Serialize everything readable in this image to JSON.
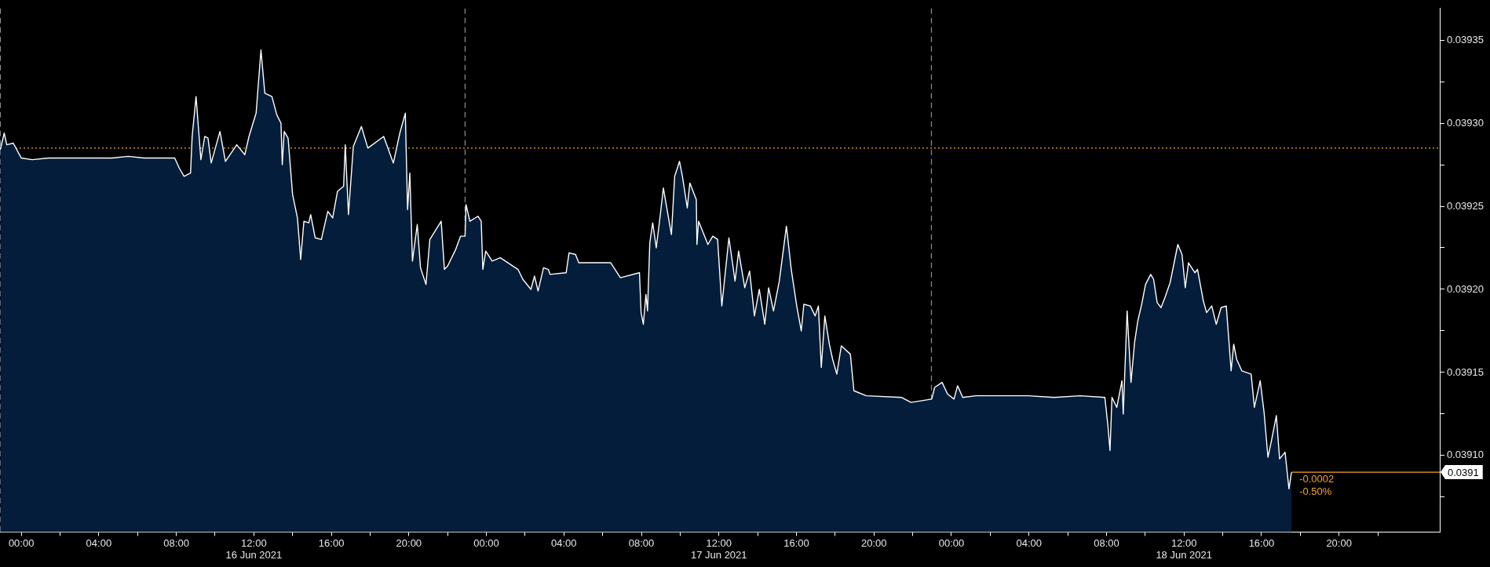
{
  "chart_data": {
    "type": "area",
    "xlim": [
      "2021-06-15T22:54",
      "2021-06-19T01:12"
    ],
    "ylim": [
      0.039054,
      0.039369
    ],
    "xticks": [
      {
        "value": "2021-06-16T00:00",
        "label": "00:00"
      },
      {
        "value": "2021-06-16T02:00",
        "label": null
      },
      {
        "value": "2021-06-16T04:00",
        "label": "04:00"
      },
      {
        "value": "2021-06-16T06:00",
        "label": null
      },
      {
        "value": "2021-06-16T08:00",
        "label": "08:00"
      },
      {
        "value": "2021-06-16T10:00",
        "label": null
      },
      {
        "value": "2021-06-16T12:00",
        "label": "12:00"
      },
      {
        "value": "2021-06-16T14:00",
        "label": null
      },
      {
        "value": "2021-06-16T16:00",
        "label": "16:00"
      },
      {
        "value": "2021-06-16T18:00",
        "label": null
      },
      {
        "value": "2021-06-16T20:00",
        "label": "20:00"
      },
      {
        "value": "2021-06-16T22:00",
        "label": null
      },
      {
        "value": "2021-06-17T00:00",
        "label": "00:00"
      },
      {
        "value": "2021-06-17T02:00",
        "label": null
      },
      {
        "value": "2021-06-17T04:00",
        "label": "04:00"
      },
      {
        "value": "2021-06-17T06:00",
        "label": null
      },
      {
        "value": "2021-06-17T08:00",
        "label": "08:00"
      },
      {
        "value": "2021-06-17T10:00",
        "label": null
      },
      {
        "value": "2021-06-17T12:00",
        "label": "12:00"
      },
      {
        "value": "2021-06-17T14:00",
        "label": null
      },
      {
        "value": "2021-06-17T16:00",
        "label": "16:00"
      },
      {
        "value": "2021-06-17T18:00",
        "label": null
      },
      {
        "value": "2021-06-17T20:00",
        "label": "20:00"
      },
      {
        "value": "2021-06-17T22:00",
        "label": null
      },
      {
        "value": "2021-06-18T00:00",
        "label": "00:00"
      },
      {
        "value": "2021-06-18T02:00",
        "label": null
      },
      {
        "value": "2021-06-18T04:00",
        "label": "04:00"
      },
      {
        "value": "2021-06-18T06:00",
        "label": null
      },
      {
        "value": "2021-06-18T08:00",
        "label": "08:00"
      },
      {
        "value": "2021-06-18T10:00",
        "label": null
      },
      {
        "value": "2021-06-18T12:00",
        "label": "12:00"
      },
      {
        "value": "2021-06-18T14:00",
        "label": null
      },
      {
        "value": "2021-06-18T16:00",
        "label": "16:00"
      },
      {
        "value": "2021-06-18T18:00",
        "label": null
      },
      {
        "value": "2021-06-18T20:00",
        "label": "20:00"
      },
      {
        "value": "2021-06-18T22:00",
        "label": null
      }
    ],
    "yticks": [
      {
        "value": 0.039075,
        "label": null
      },
      {
        "value": 0.0391,
        "label": "0.03910"
      },
      {
        "value": 0.039125,
        "label": null
      },
      {
        "value": 0.03915,
        "label": "0.03915"
      },
      {
        "value": 0.039175,
        "label": null
      },
      {
        "value": 0.0392,
        "label": "0.03920"
      },
      {
        "value": 0.039225,
        "label": null
      },
      {
        "value": 0.03925,
        "label": "0.03925"
      },
      {
        "value": 0.039275,
        "label": null
      },
      {
        "value": 0.0393,
        "label": "0.03930"
      },
      {
        "value": 0.039325,
        "label": null
      },
      {
        "value": 0.03935,
        "label": "0.03935"
      }
    ],
    "grid": false,
    "legend": false,
    "marker": "none",
    "series": [
      {
        "color": "#031d3a",
        "x": [
          "2021-06-15T22:55",
          "2021-06-15T23:07",
          "2021-06-15T23:15",
          "2021-06-15T23:35",
          "2021-06-16T00:00",
          "2021-06-16T00:34",
          "2021-06-16T01:24",
          "2021-06-16T03:03",
          "2021-06-16T04:41",
          "2021-06-16T05:31",
          "2021-06-16T06:20",
          "2021-06-16T07:55",
          "2021-06-16T08:09",
          "2021-06-16T08:24",
          "2021-06-16T08:44",
          "2021-06-16T08:49",
          "2021-06-16T09:01",
          "2021-06-16T09:16",
          "2021-06-16T09:28",
          "2021-06-16T09:38",
          "2021-06-16T09:48",
          "2021-06-16T10:15",
          "2021-06-16T10:32",
          "2021-06-16T11:07",
          "2021-06-16T11:32",
          "2021-06-16T11:45",
          "2021-06-16T12:07",
          "2021-06-16T12:22",
          "2021-06-16T12:34",
          "2021-06-16T12:56",
          "2021-06-16T13:11",
          "2021-06-16T13:24",
          "2021-06-16T13:28",
          "2021-06-16T13:34",
          "2021-06-16T13:46",
          "2021-06-16T14:00",
          "2021-06-16T14:15",
          "2021-06-16T14:25",
          "2021-06-16T14:35",
          "2021-06-16T14:50",
          "2021-06-16T14:56",
          "2021-06-16T15:10",
          "2021-06-16T15:29",
          "2021-06-16T15:49",
          "2021-06-16T16:04",
          "2021-06-16T16:19",
          "2021-06-16T16:38",
          "2021-06-16T16:43",
          "2021-06-16T16:53",
          "2021-06-16T17:08",
          "2021-06-16T17:33",
          "2021-06-16T17:53",
          "2021-06-16T18:42",
          "2021-06-16T19:12",
          "2021-06-16T19:32",
          "2021-06-16T19:49",
          "2021-06-16T19:56",
          "2021-06-16T20:03",
          "2021-06-16T20:11",
          "2021-06-16T20:26",
          "2021-06-16T20:36",
          "2021-06-16T20:53",
          "2021-06-16T21:05",
          "2021-06-16T21:40",
          "2021-06-16T21:50",
          "2021-06-16T22:00",
          "2021-06-16T22:25",
          "2021-06-16T22:40",
          "2021-06-16T22:54",
          "2021-06-16T22:57",
          "2021-06-16T23:09",
          "2021-06-16T23:34",
          "2021-06-16T23:44",
          "2021-06-16T23:49",
          "2021-06-16T23:58",
          "2021-06-17T00:18",
          "2021-06-17T00:43",
          "2021-06-17T01:38",
          "2021-06-17T01:53",
          "2021-06-17T02:18",
          "2021-06-17T02:29",
          "2021-06-17T02:40",
          "2021-06-17T02:57",
          "2021-06-17T03:12",
          "2021-06-17T03:17",
          "2021-06-17T04:07",
          "2021-06-17T04:16",
          "2021-06-17T04:36",
          "2021-06-17T04:46",
          "2021-06-17T05:46",
          "2021-06-17T06:25",
          "2021-06-17T06:55",
          "2021-06-17T07:54",
          "2021-06-17T07:59",
          "2021-06-17T08:06",
          "2021-06-17T08:14",
          "2021-06-17T08:19",
          "2021-06-17T08:26",
          "2021-06-17T08:35",
          "2021-06-17T08:46",
          "2021-06-17T08:58",
          "2021-06-17T09:08",
          "2021-06-17T09:23",
          "2021-06-17T09:33",
          "2021-06-17T09:43",
          "2021-06-17T09:58",
          "2021-06-17T10:07",
          "2021-06-17T10:22",
          "2021-06-17T10:30",
          "2021-06-17T10:50",
          "2021-06-17T10:52",
          "2021-06-17T10:57",
          "2021-06-17T11:26",
          "2021-06-17T11:41",
          "2021-06-17T11:56",
          "2021-06-17T12:09",
          "2021-06-17T12:31",
          "2021-06-17T12:50",
          "2021-06-17T13:01",
          "2021-06-17T13:20",
          "2021-06-17T13:35",
          "2021-06-17T13:50",
          "2021-06-17T14:05",
          "2021-06-17T14:22",
          "2021-06-17T14:34",
          "2021-06-17T14:49",
          "2021-06-17T15:07",
          "2021-06-17T15:29",
          "2021-06-17T15:44",
          "2021-06-17T16:01",
          "2021-06-17T16:15",
          "2021-06-17T16:23",
          "2021-06-17T16:43",
          "2021-06-17T16:58",
          "2021-06-17T17:08",
          "2021-06-17T17:17",
          "2021-06-17T17:28",
          "2021-06-17T17:42",
          "2021-06-17T17:52",
          "2021-06-17T18:05",
          "2021-06-17T18:19",
          "2021-06-17T18:47",
          "2021-06-17T18:58",
          "2021-06-17T19:36",
          "2021-06-17T21:25",
          "2021-06-17T21:55",
          "2021-06-17T22:59",
          "2021-06-17T23:08",
          "2021-06-17T23:31",
          "2021-06-17T23:48",
          "2021-06-18T00:08",
          "2021-06-18T00:19",
          "2021-06-18T00:35",
          "2021-06-18T01:16",
          "2021-06-18T02:37",
          "2021-06-18T03:57",
          "2021-06-18T05:18",
          "2021-06-18T06:39",
          "2021-06-18T07:55",
          "2021-06-18T08:04",
          "2021-06-18T08:11",
          "2021-06-18T08:17",
          "2021-06-18T08:32",
          "2021-06-18T08:48",
          "2021-06-18T08:52",
          "2021-06-18T09:04",
          "2021-06-18T09:16",
          "2021-06-18T09:27",
          "2021-06-18T09:37",
          "2021-06-18T09:49",
          "2021-06-18T10:01",
          "2021-06-18T10:17",
          "2021-06-18T10:26",
          "2021-06-18T10:37",
          "2021-06-18T10:49",
          "2021-06-18T11:01",
          "2021-06-18T11:17",
          "2021-06-18T11:41",
          "2021-06-18T11:54",
          "2021-06-18T12:04",
          "2021-06-18T12:14",
          "2021-06-18T12:34",
          "2021-06-18T12:42",
          "2021-06-18T13:00",
          "2021-06-18T13:10",
          "2021-06-18T13:26",
          "2021-06-18T13:40",
          "2021-06-18T13:55",
          "2021-06-18T14:11",
          "2021-06-18T14:26",
          "2021-06-18T14:34",
          "2021-06-18T14:43",
          "2021-06-18T14:59",
          "2021-06-18T15:28",
          "2021-06-18T15:38",
          "2021-06-18T15:56",
          "2021-06-18T16:08",
          "2021-06-18T16:20",
          "2021-06-18T16:32",
          "2021-06-18T16:46",
          "2021-06-18T16:56",
          "2021-06-18T17:13",
          "2021-06-18T17:25",
          "2021-06-18T17:33"
        ],
        "values": [
          0.039284,
          0.039294,
          0.039287,
          0.039288,
          0.039279,
          0.039278,
          0.039279,
          0.039279,
          0.039279,
          0.03928,
          0.039279,
          0.039279,
          0.039273,
          0.039268,
          0.03927,
          0.039292,
          0.039316,
          0.039278,
          0.039292,
          0.039291,
          0.039276,
          0.039295,
          0.039277,
          0.039287,
          0.039281,
          0.039292,
          0.039306,
          0.039344,
          0.039318,
          0.039316,
          0.039305,
          0.0393,
          0.039275,
          0.039295,
          0.039291,
          0.039257,
          0.039243,
          0.039218,
          0.039241,
          0.03924,
          0.039245,
          0.039231,
          0.03923,
          0.039247,
          0.039243,
          0.039259,
          0.039262,
          0.039287,
          0.039245,
          0.039286,
          0.039298,
          0.039285,
          0.039292,
          0.039276,
          0.039294,
          0.039306,
          0.039248,
          0.03927,
          0.039217,
          0.039239,
          0.039213,
          0.039203,
          0.03923,
          0.039241,
          0.039212,
          0.039214,
          0.039224,
          0.039232,
          0.039232,
          0.039251,
          0.039241,
          0.039244,
          0.039241,
          0.039212,
          0.039223,
          0.039217,
          0.039219,
          0.039212,
          0.039206,
          0.0392,
          0.039208,
          0.039199,
          0.039213,
          0.039212,
          0.039209,
          0.03921,
          0.039222,
          0.039221,
          0.039216,
          0.039216,
          0.039216,
          0.039207,
          0.03921,
          0.039186,
          0.039179,
          0.039197,
          0.039187,
          0.039228,
          0.03924,
          0.039225,
          0.039244,
          0.039261,
          0.039244,
          0.039233,
          0.039268,
          0.039277,
          0.039268,
          0.039249,
          0.039264,
          0.039254,
          0.039227,
          0.039241,
          0.039227,
          0.039232,
          0.03923,
          0.03919,
          0.039231,
          0.039205,
          0.039223,
          0.039201,
          0.039211,
          0.039184,
          0.0392,
          0.039179,
          0.039201,
          0.039187,
          0.039205,
          0.039238,
          0.039212,
          0.03919,
          0.039175,
          0.039191,
          0.03919,
          0.039184,
          0.03919,
          0.039153,
          0.039184,
          0.039167,
          0.039158,
          0.039149,
          0.039166,
          0.039161,
          0.039139,
          0.039136,
          0.039135,
          0.039132,
          0.039134,
          0.039141,
          0.039144,
          0.039137,
          0.039134,
          0.039142,
          0.039135,
          0.039136,
          0.039136,
          0.039136,
          0.039135,
          0.039136,
          0.039135,
          0.039119,
          0.039103,
          0.039135,
          0.039129,
          0.039145,
          0.039125,
          0.039187,
          0.039144,
          0.039168,
          0.039181,
          0.039191,
          0.039203,
          0.039209,
          0.039206,
          0.039192,
          0.039189,
          0.039195,
          0.039204,
          0.039227,
          0.039221,
          0.039201,
          0.039216,
          0.03921,
          0.039212,
          0.039193,
          0.039186,
          0.03919,
          0.039179,
          0.039189,
          0.03919,
          0.039151,
          0.039167,
          0.039158,
          0.039151,
          0.039149,
          0.039129,
          0.039145,
          0.039126,
          0.039099,
          0.03911,
          0.039124,
          0.039098,
          0.039102,
          0.03908,
          0.03909
        ]
      }
    ],
    "ref_lines": [
      {
        "axis": "y",
        "value": 0.039285,
        "color": "#f5a623",
        "line_style": "dotted"
      },
      {
        "axis": "x",
        "value": "2021-06-15T22:55",
        "color": "#8a8f96",
        "line_style": "dashed"
      },
      {
        "axis": "x",
        "value": "2021-06-16T22:54",
        "color": "#8a8f96",
        "line_style": "dashed"
      },
      {
        "axis": "x",
        "value": "2021-06-17T22:58",
        "color": "#8a8f96",
        "line_style": "dashed"
      },
      {
        "axis": "y",
        "value": 0.03909,
        "label": "0.0391",
        "color": "#f5a623",
        "line_style": "solid"
      }
    ],
    "annotations": [
      "16 Jun 2021",
      "17 Jun 2021",
      "18 Jun 2021",
      {
        "text": "-0.0002",
        "x": "2021-06-18T17:33",
        "y": 0.03909
      },
      {
        "text": "-0.50%",
        "x": "2021-06-18T17:33",
        "y": 0.03909
      }
    ]
  }
}
